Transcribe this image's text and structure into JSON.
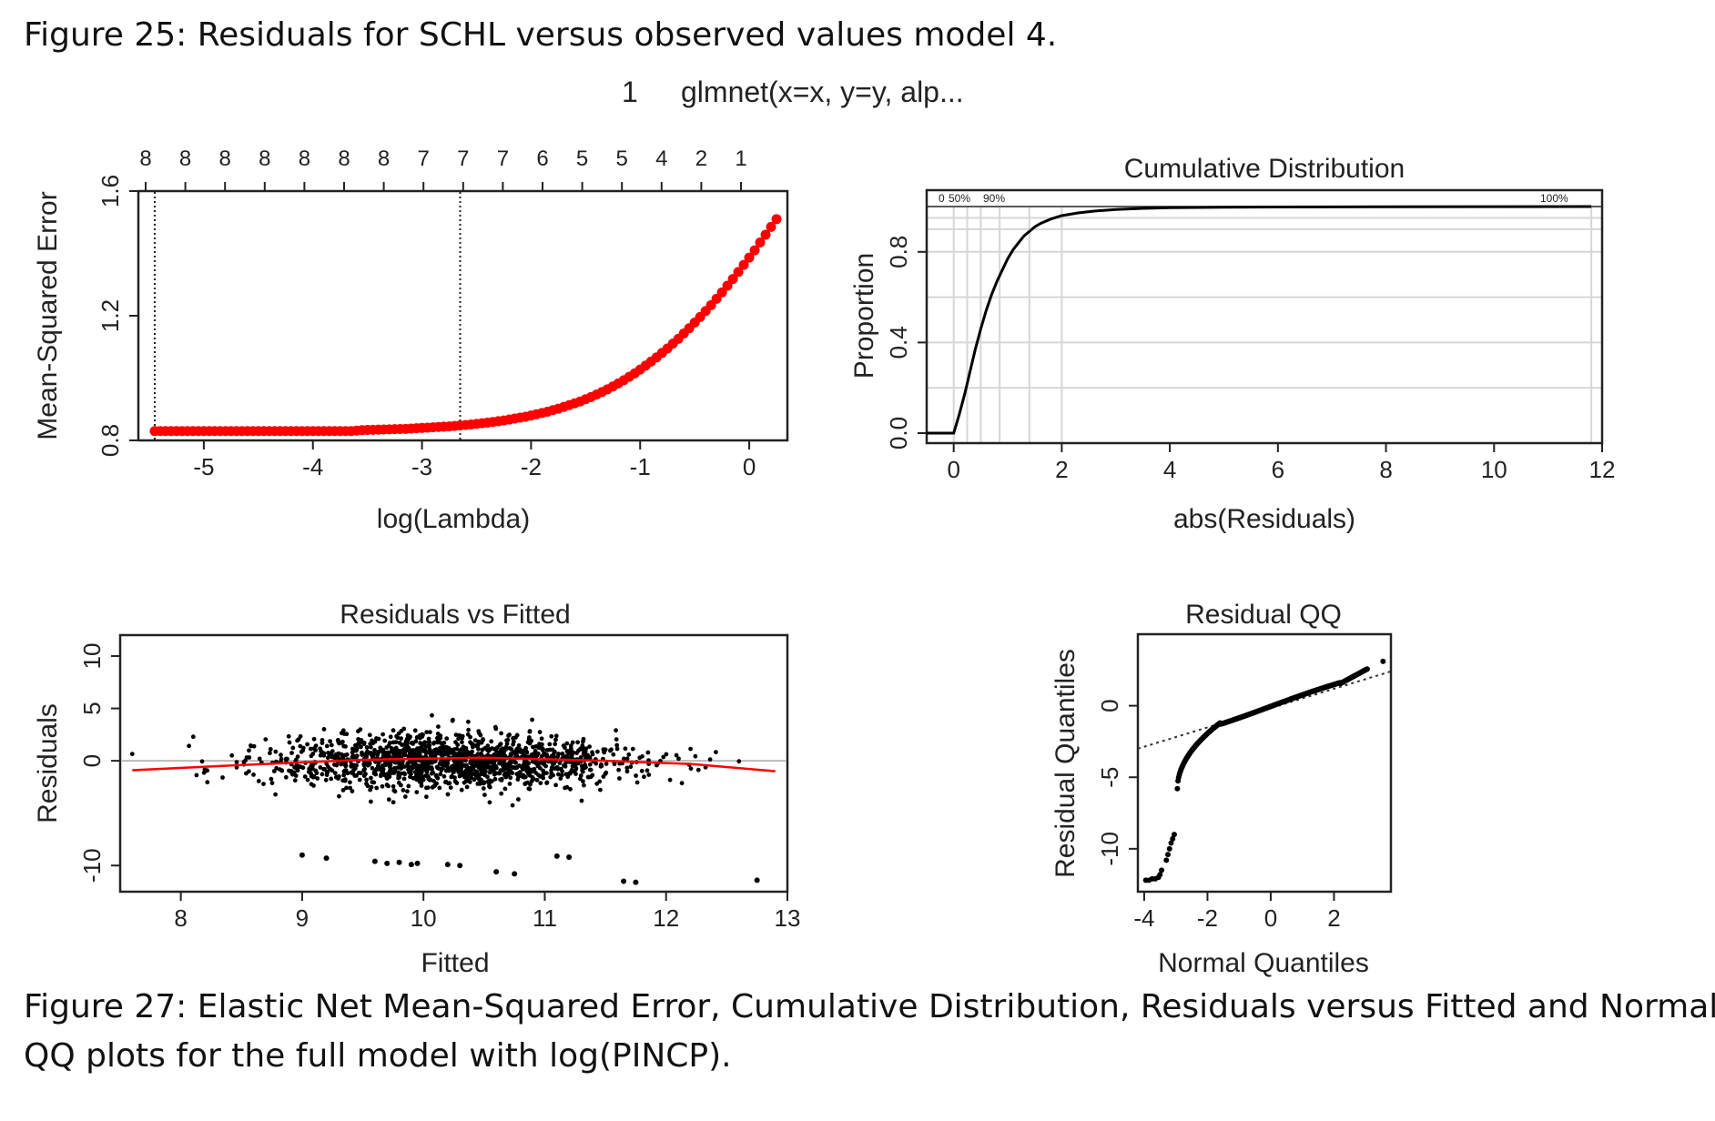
{
  "captions": {
    "top": "Figure 25: Residuals for SCHL versus observed values model 4.",
    "bottom_line1": "Figure 27: Elastic Net Mean-Squared Error, Cumulative Distribution, Residuals versus Fitted and Normal",
    "bottom_line2": "QQ plots for the full model with log(PINCP)."
  },
  "header": {
    "index": "1",
    "call": "glmnet(x=x, y=y, alp..."
  },
  "chart_data": [
    {
      "type": "scatter",
      "title": "",
      "xlabel": "log(Lambda)",
      "ylabel": "Mean-Squared Error",
      "xlim": [
        -5.6,
        0.35
      ],
      "ylim": [
        0.8,
        1.6
      ],
      "xticks": [
        -5,
        -4,
        -3,
        -2,
        -1,
        0
      ],
      "yticks": [
        0.8,
        1.2,
        1.6
      ],
      "top_axis_values": [
        8,
        8,
        8,
        8,
        8,
        8,
        8,
        7,
        7,
        7,
        6,
        5,
        5,
        4,
        2,
        1
      ],
      "vlines": [
        -5.45,
        -2.65
      ],
      "point_color": "#ff0000",
      "points": {
        "x": [
          -5.45,
          -5.35,
          -5.25,
          -5.15,
          -5.05,
          -4.95,
          -4.85,
          -4.75,
          -4.65,
          -4.55,
          -4.45,
          -4.35,
          -4.25,
          -4.15,
          -4.05,
          -3.95,
          -3.85,
          -3.75,
          -3.65,
          -3.55,
          -3.45,
          -3.35,
          -3.25,
          -3.15,
          -3.05,
          -2.95,
          -2.85,
          -2.75,
          -2.65,
          -2.55,
          -2.45,
          -2.35,
          -2.25,
          -2.15,
          -2.05,
          -1.95,
          -1.85,
          -1.75,
          -1.65,
          -1.55,
          -1.45,
          -1.35,
          -1.25,
          -1.15,
          -1.05,
          -0.95,
          -0.85,
          -0.75,
          -0.65,
          -0.55,
          -0.45,
          -0.35,
          -0.25,
          -0.15,
          -0.05,
          0.05,
          0.15,
          0.25
        ],
        "y": [
          0.83,
          0.83,
          0.83,
          0.83,
          0.83,
          0.83,
          0.83,
          0.83,
          0.83,
          0.83,
          0.83,
          0.83,
          0.83,
          0.83,
          0.83,
          0.83,
          0.83,
          0.83,
          0.83,
          0.833,
          0.834,
          0.835,
          0.836,
          0.837,
          0.839,
          0.841,
          0.843,
          0.845,
          0.848,
          0.851,
          0.855,
          0.859,
          0.864,
          0.87,
          0.876,
          0.884,
          0.892,
          0.902,
          0.913,
          0.925,
          0.939,
          0.955,
          0.973,
          0.993,
          1.015,
          1.04,
          1.066,
          1.095,
          1.126,
          1.16,
          1.196,
          1.234,
          1.275,
          1.318,
          1.363,
          1.41,
          1.46,
          1.51
        ]
      }
    },
    {
      "type": "line",
      "title": "Cumulative Distribution",
      "xlabel": "abs(Residuals)",
      "ylabel": "Proportion",
      "xlim": [
        -0.5,
        12
      ],
      "ylim": [
        0,
        1
      ],
      "xticks": [
        0,
        2,
        4,
        6,
        8,
        10,
        12
      ],
      "yticks": [
        0.0,
        0.4,
        0.8
      ],
      "quantile_labels": [
        "0",
        "50%",
        "90%",
        "100%"
      ],
      "series": [
        {
          "x": [
            -0.5,
            0,
            0.1,
            0.2,
            0.3,
            0.4,
            0.5,
            0.6,
            0.7,
            0.8,
            0.9,
            1.0,
            1.1,
            1.2,
            1.3,
            1.4,
            1.5,
            1.6,
            1.8,
            2.0,
            2.3,
            2.6,
            3.0,
            3.5,
            4.0,
            5,
            6,
            8,
            10,
            11.8
          ],
          "y": [
            0,
            0,
            0.08,
            0.17,
            0.27,
            0.37,
            0.46,
            0.54,
            0.61,
            0.67,
            0.72,
            0.77,
            0.81,
            0.84,
            0.87,
            0.89,
            0.91,
            0.925,
            0.945,
            0.96,
            0.972,
            0.98,
            0.987,
            0.992,
            0.995,
            0.997,
            0.998,
            0.999,
            0.9995,
            1.0
          ]
        }
      ]
    },
    {
      "type": "scatter",
      "title": "Residuals vs Fitted",
      "xlabel": "Fitted",
      "ylabel": "Residuals",
      "xlim": [
        7.5,
        13.0
      ],
      "ylim": [
        -12.5,
        12
      ],
      "xticks": [
        8,
        9,
        10,
        11,
        12,
        13
      ],
      "yticks": [
        -10,
        0,
        5,
        10
      ],
      "zero_line_color": "#bbbbbb",
      "smooth_color": "#ff0000",
      "smooth": {
        "x": [
          7.6,
          8.5,
          9.5,
          10.5,
          11.5,
          12.2,
          12.9
        ],
        "y": [
          -0.9,
          -0.4,
          0.1,
          0.3,
          0.0,
          -0.3,
          -1.0
        ]
      },
      "outliers": {
        "x": [
          9.0,
          9.2,
          9.6,
          9.7,
          9.8,
          9.9,
          9.95,
          10.2,
          10.3,
          10.6,
          10.75,
          11.1,
          11.2,
          11.65,
          11.75,
          12.75
        ],
        "y": [
          -9.0,
          -9.3,
          -9.6,
          -9.8,
          -9.7,
          -9.9,
          -9.8,
          -9.9,
          -10.0,
          -10.6,
          -10.8,
          -9.1,
          -9.2,
          -11.5,
          -11.6,
          -11.4
        ]
      }
    },
    {
      "type": "scatter",
      "title": "Residual QQ",
      "xlabel": "Normal Quantiles",
      "ylabel": "Residual Quantiles",
      "xlim": [
        -4.2,
        3.8
      ],
      "ylim": [
        -13,
        5
      ],
      "xticks": [
        -4,
        -2,
        0,
        2
      ],
      "yticks": [
        -10,
        -5,
        0
      ],
      "reference_line": {
        "x": [
          -4.2,
          3.8
        ],
        "y": [
          -3.0,
          2.4
        ]
      },
      "low_tail": {
        "x": [
          -3.95,
          -3.85,
          -3.75,
          -3.65,
          -3.55,
          -3.5,
          -3.45,
          -3.3,
          -3.25,
          -3.2,
          -3.15,
          -3.1,
          -3.05
        ],
        "y": [
          -12.2,
          -12.2,
          -12.1,
          -12.1,
          -12.0,
          -11.8,
          -11.5,
          -10.8,
          -10.4,
          -10.0,
          -9.6,
          -9.3,
          -9.0
        ]
      },
      "max_point": {
        "x": 3.55,
        "y": 3.1
      }
    }
  ]
}
